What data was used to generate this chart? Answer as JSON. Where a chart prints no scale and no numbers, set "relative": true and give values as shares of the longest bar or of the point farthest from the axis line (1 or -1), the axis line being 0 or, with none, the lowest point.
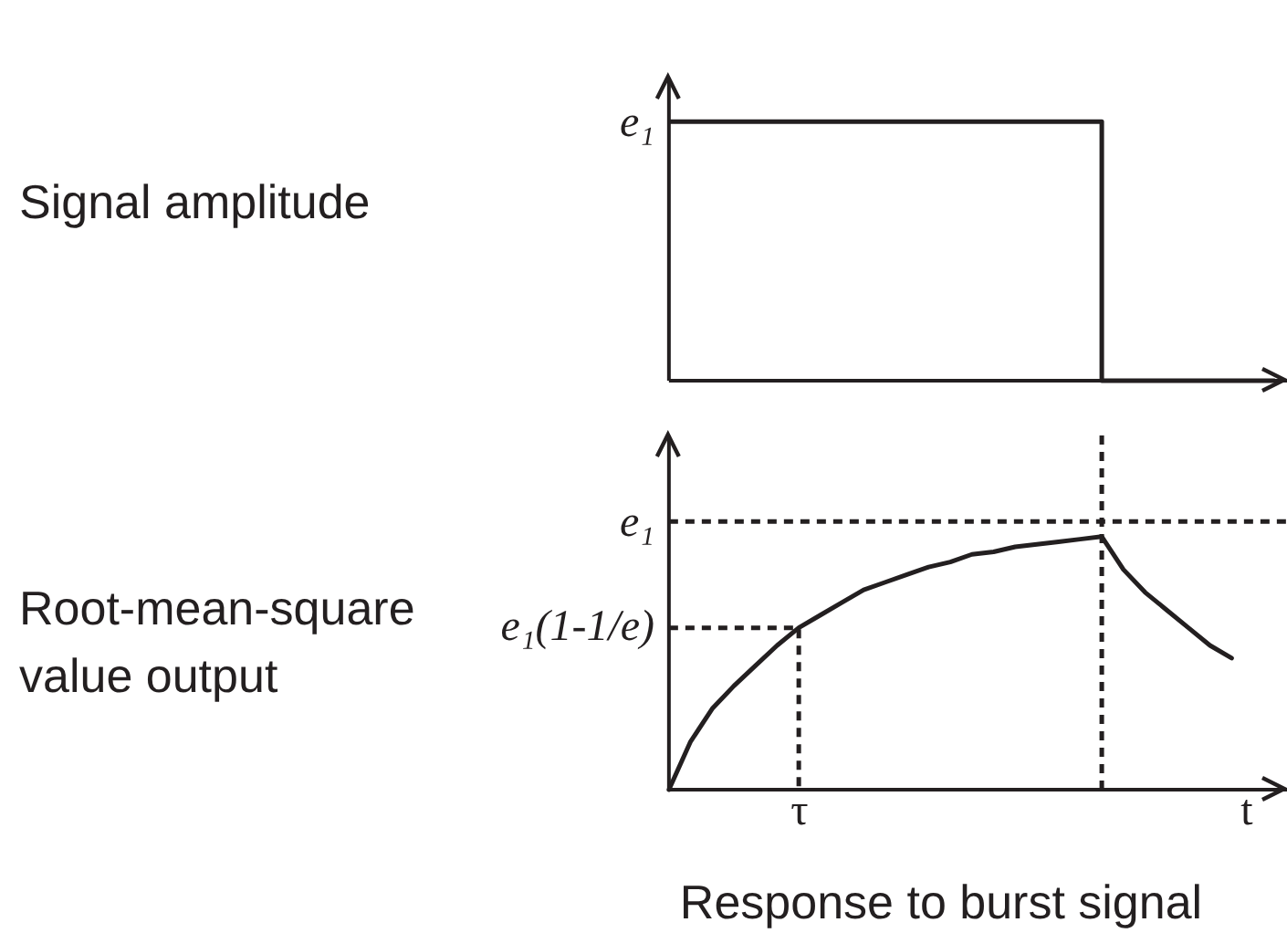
{
  "chart_data": [
    {
      "type": "line",
      "relative": true,
      "ylabel": "Signal amplitude",
      "categories": [
        null,
        null,
        null,
        null,
        null,
        null,
        null,
        null,
        null,
        null,
        null,
        null,
        null,
        null,
        null,
        null,
        null,
        null,
        null,
        null,
        null,
        null,
        null,
        null,
        null,
        null,
        null,
        null,
        null
      ],
      "series": [
        {
          "type": "step",
          "color": "#231f20",
          "values": [
            1,
            1,
            1,
            1,
            1,
            1,
            1,
            1,
            1,
            1,
            1,
            1,
            1,
            1,
            1,
            1,
            1,
            1,
            1,
            1,
            0,
            0,
            0,
            0,
            0,
            0,
            0,
            0,
            0
          ]
        }
      ],
      "annotations": [
        "e₁"
      ]
    },
    {
      "type": "line",
      "relative": true,
      "ylabel": "Root-mean-square value output",
      "xlabel": "t",
      "categories": [
        null,
        null,
        null,
        null,
        null,
        null,
        null,
        null,
        null,
        null,
        null,
        null,
        null,
        null,
        null,
        null,
        null,
        null,
        null,
        null,
        null,
        null,
        null,
        null,
        null,
        null,
        null,
        null,
        null
      ],
      "ref_lines": [
        {
          "axis": "y",
          "value": 1.06,
          "line_style": "dashed",
          "color": "#231f20"
        }
      ],
      "series": [
        {
          "color": "#231f20",
          "values": [
            0,
            0.19,
            0.32,
            0.41,
            0.49,
            0.57,
            0.64,
            0.69,
            0.74,
            0.79,
            0.82,
            0.85,
            0.88,
            0.9,
            0.93,
            0.94,
            0.96,
            0.97,
            0.98,
            0.99,
            1,
            0.87,
            0.78,
            0.71,
            0.64,
            0.57,
            0.52,
            null,
            null
          ]
        },
        {
          "type": "step",
          "color": "#231f20",
          "line_style": "dashed",
          "values": [
            0.64,
            0.64,
            0.64,
            0.64,
            0.64,
            0.64,
            0,
            null,
            null,
            null,
            null,
            null,
            null,
            null,
            null,
            null,
            null,
            null,
            null,
            null,
            null,
            null,
            null,
            null,
            null,
            null,
            null,
            null,
            null
          ]
        }
      ],
      "annotations": [
        "e₁",
        "e₁(1-1/e)",
        "τ",
        "Response to burst signal"
      ]
    }
  ]
}
